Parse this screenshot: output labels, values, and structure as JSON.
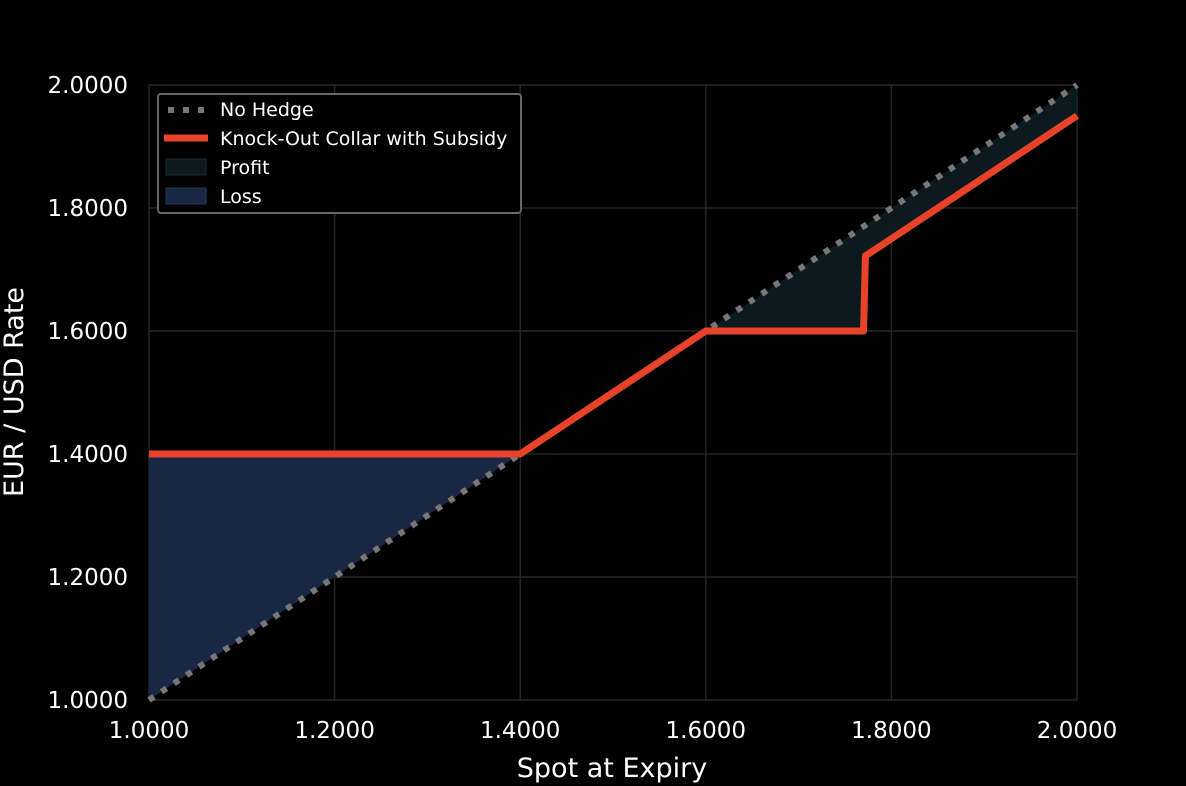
{
  "chart_data": {
    "type": "line",
    "xlabel": "Spot at Expiry",
    "ylabel": "EUR / USD Rate",
    "xlim": [
      1.0,
      2.0
    ],
    "ylim": [
      1.0,
      2.0
    ],
    "x_ticks": [
      "1.0000",
      "1.2000",
      "1.4000",
      "1.6000",
      "1.8000",
      "2.0000"
    ],
    "y_ticks": [
      "1.0000",
      "1.2000",
      "1.4000",
      "1.6000",
      "1.8000",
      "2.0000"
    ],
    "grid": true,
    "legend_position": "top-left",
    "colors": {
      "background": "#000000",
      "grid": "#262626",
      "no_hedge": "#777777",
      "collar": "#e8432a",
      "profit_fill": "#0c1a1f",
      "loss_fill": "#192644",
      "legend_border": "#666666"
    },
    "series": [
      {
        "name": "No Hedge",
        "style": "dotted",
        "x": [
          1.0,
          2.0
        ],
        "y": [
          1.0,
          2.0
        ]
      },
      {
        "name": "Knock-Out Collar with Subsidy",
        "style": "solid",
        "x": [
          1.0,
          1.4,
          1.6,
          1.77,
          1.772,
          2.0
        ],
        "y": [
          1.4,
          1.4,
          1.6,
          1.6,
          1.722,
          1.95
        ]
      }
    ],
    "legend": {
      "no_hedge": "No Hedge",
      "collar": "Knock-Out Collar with Subsidy",
      "profit": "Profit",
      "loss": "Loss"
    }
  }
}
